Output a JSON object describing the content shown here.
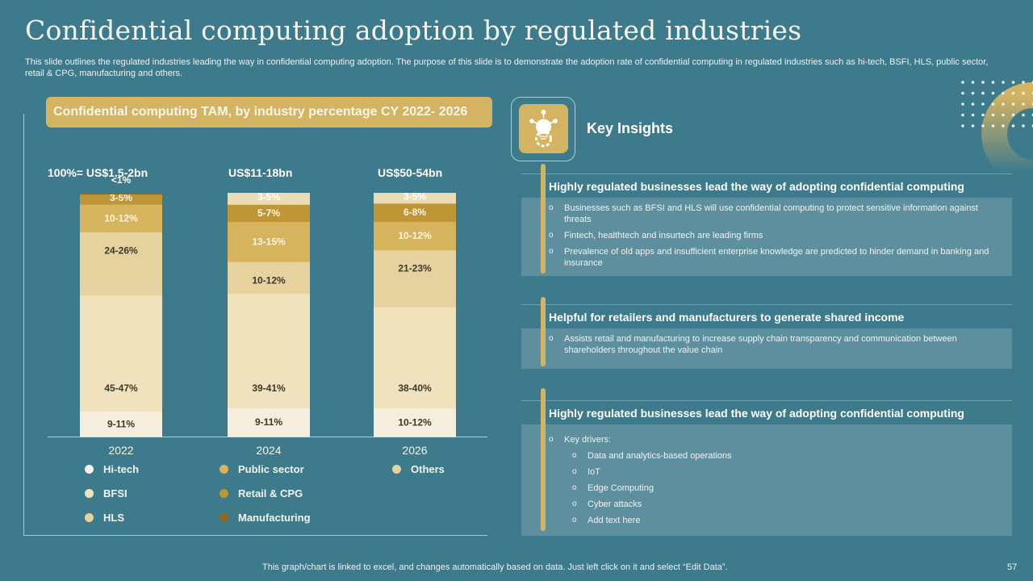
{
  "title": "Confidential computing adoption by regulated industries",
  "subtitle": "This slide outlines the regulated industries leading the way in confidential computing adoption. The purpose of this slide is to demonstrate the adoption rate of confidential computing in regulated industries such as hi-tech, BSFI, HLS, public sector, retail & CPG, manufacturing and others.",
  "chart_data": {
    "type": "bar",
    "stacked": true,
    "title": "Confidential computing TAM, by industry percentage CY 2022- 2026",
    "xlabel": "",
    "ylabel": "",
    "ylim": [
      0,
      100
    ],
    "categories": [
      "2022",
      "2024",
      "2026"
    ],
    "totals": [
      "100%= US$1.5-2bn",
      "US$11-18bn",
      "US$50-54bn"
    ],
    "series": [
      {
        "name": "Hi-tech",
        "color": "#f5eedd",
        "values": [
          10,
          10,
          11
        ],
        "labels": [
          "9-11%",
          "9-11%",
          "10-12%"
        ],
        "label_color": "#3a3a2a"
      },
      {
        "name": "BFSI",
        "color": "#efe2bd",
        "values": [
          46,
          40,
          39
        ],
        "labels": [
          "45-47%",
          "39-41%",
          "38-40%"
        ],
        "label_color": "#3a3a2a"
      },
      {
        "name": "HLS",
        "color": "#e6d29e",
        "values": [
          25,
          11,
          22
        ],
        "labels": [
          "24-26%",
          "10-12%",
          "21-23%"
        ],
        "label_color": "#3a3a2a"
      },
      {
        "name": "Public sector",
        "color": "#d6b45e",
        "values": [
          11,
          14,
          11
        ],
        "labels": [
          "10-12%",
          "13-15%",
          "10-12%"
        ],
        "label_color": "#fbf5df"
      },
      {
        "name": "Retail & CPG",
        "color": "#be9636",
        "values": [
          4,
          6,
          7
        ],
        "labels": [
          "3-5%",
          "5-7%",
          "6-8%"
        ],
        "label_color": "#fbf5df"
      },
      {
        "name": "Manufacturing",
        "color": "#8c6a22",
        "values": [
          0.5,
          0,
          0
        ],
        "labels": [
          "<1%",
          "",
          ""
        ],
        "label_color": "#ffffff"
      },
      {
        "name": "Others",
        "color": "#eadcb4",
        "values": [
          0,
          4,
          4
        ],
        "labels": [
          "",
          "3-5%",
          "3-5%"
        ],
        "label_color": "#ffffff"
      }
    ],
    "legend": {
      "placement": "bottom",
      "items": [
        "Hi-tech",
        "BFSI",
        "HLS",
        "Public sector",
        "Retail & CPG",
        "Manufacturing",
        "Others"
      ]
    },
    "grid": false
  },
  "key_insights": {
    "title": "Key Insights",
    "icon": "lightbulb-gear-icon",
    "items": [
      {
        "heading": "Highly regulated businesses lead the way of adopting confidential computing",
        "bullets": [
          {
            "text": "Businesses such as BFSI and HLS will use confidential computing to protect sensitive information against threats",
            "level": 1
          },
          {
            "text": "Fintech, healthtech and insurtech are leading firms",
            "level": 1
          },
          {
            "text": "Prevalence of old apps and insufficient enterprise knowledge are predicted to hinder demand in banking and insurance",
            "level": 1
          }
        ]
      },
      {
        "heading": "Helpful for retailers and manufacturers to generate shared income",
        "bullets": [
          {
            "text": "Assists retail and manufacturing to increase supply chain transparency and communication between shareholders throughout the value chain",
            "level": 1
          }
        ]
      },
      {
        "heading": "Highly regulated businesses lead the way of adopting confidential computing",
        "bullets": [
          {
            "text": "Key drivers:",
            "level": 1
          },
          {
            "text": "Data and analytics-based operations",
            "level": 2
          },
          {
            "text": "IoT",
            "level": 2
          },
          {
            "text": "Edge Computing",
            "level": 2
          },
          {
            "text": "Cyber attacks",
            "level": 2
          },
          {
            "text": "Add text here",
            "level": 2
          }
        ]
      }
    ]
  },
  "footer": "This graph/chart is linked to excel,  and changes automatically based on data. Just left click on it and select “Edit Data”.",
  "page_number": "57",
  "colors": {
    "background": "#3d7a8c",
    "accent": "#d4b463",
    "panel": "#5d8f9e"
  }
}
